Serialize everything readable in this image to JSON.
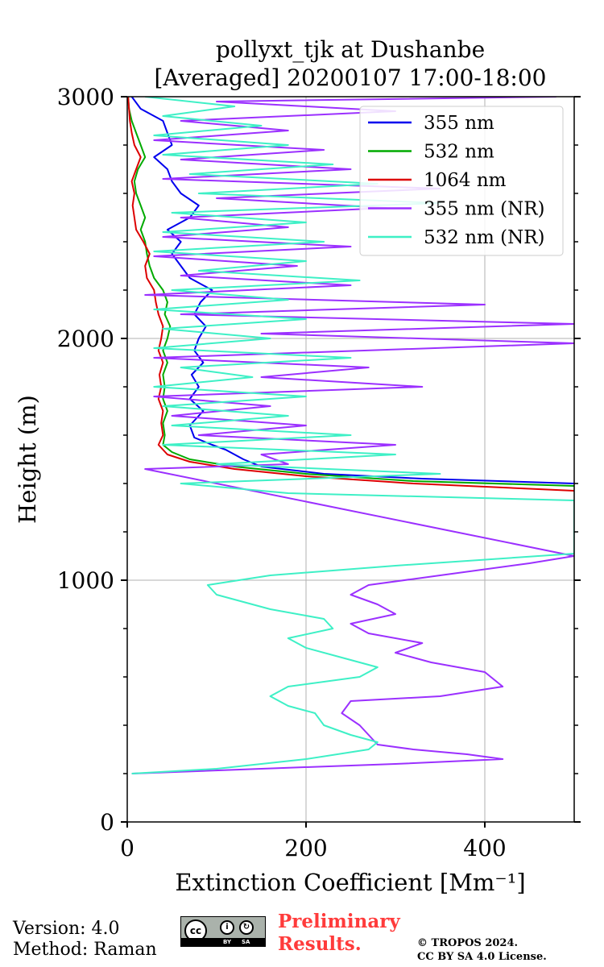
{
  "chart_data": {
    "type": "line",
    "title_line1": "pollyxt_tjk at Dushanbe",
    "title_line2": "[Averaged] 20200107 17:00-18:00",
    "xlabel": "Extinction Coefficient [Mm⁻¹]",
    "ylabel": "Height (m)",
    "xlim": [
      0,
      500
    ],
    "ylim": [
      0,
      3000
    ],
    "xticks": [
      0,
      200,
      400
    ],
    "yticks": [
      0,
      1000,
      2000,
      3000
    ],
    "grid": true,
    "legend_position": "top-right",
    "series": [
      {
        "name": "355 nm",
        "color": "#0000ee",
        "points": [
          [
            500,
            1400
          ],
          [
            330,
            1420
          ],
          [
            220,
            1440
          ],
          [
            150,
            1470
          ],
          [
            130,
            1500
          ],
          [
            110,
            1540
          ],
          [
            95,
            1560
          ],
          [
            75,
            1590
          ],
          [
            70,
            1640
          ],
          [
            85,
            1700
          ],
          [
            70,
            1750
          ],
          [
            80,
            1800
          ],
          [
            72,
            1850
          ],
          [
            85,
            1900
          ],
          [
            75,
            1950
          ],
          [
            80,
            2000
          ],
          [
            88,
            2050
          ],
          [
            75,
            2100
          ],
          [
            82,
            2150
          ],
          [
            95,
            2200
          ],
          [
            70,
            2250
          ],
          [
            60,
            2300
          ],
          [
            50,
            2350
          ],
          [
            60,
            2400
          ],
          [
            45,
            2450
          ],
          [
            70,
            2500
          ],
          [
            80,
            2550
          ],
          [
            60,
            2600
          ],
          [
            50,
            2650
          ],
          [
            45,
            2700
          ],
          [
            30,
            2750
          ],
          [
            50,
            2800
          ],
          [
            45,
            2850
          ],
          [
            40,
            2900
          ],
          [
            15,
            2950
          ],
          [
            5,
            3000
          ]
        ]
      },
      {
        "name": "532 nm",
        "color": "#00aa00",
        "points": [
          [
            500,
            1390
          ],
          [
            320,
            1410
          ],
          [
            200,
            1440
          ],
          [
            120,
            1470
          ],
          [
            70,
            1500
          ],
          [
            50,
            1530
          ],
          [
            40,
            1560
          ],
          [
            42,
            1600
          ],
          [
            40,
            1650
          ],
          [
            45,
            1700
          ],
          [
            40,
            1750
          ],
          [
            42,
            1800
          ],
          [
            40,
            1850
          ],
          [
            45,
            1900
          ],
          [
            40,
            1950
          ],
          [
            45,
            2000
          ],
          [
            48,
            2050
          ],
          [
            42,
            2100
          ],
          [
            45,
            2150
          ],
          [
            40,
            2200
          ],
          [
            30,
            2250
          ],
          [
            25,
            2300
          ],
          [
            22,
            2350
          ],
          [
            20,
            2400
          ],
          [
            15,
            2450
          ],
          [
            20,
            2500
          ],
          [
            15,
            2550
          ],
          [
            10,
            2600
          ],
          [
            8,
            2650
          ],
          [
            12,
            2700
          ],
          [
            20,
            2750
          ],
          [
            15,
            2800
          ],
          [
            10,
            2850
          ],
          [
            5,
            2900
          ],
          [
            2,
            2950
          ],
          [
            1,
            3000
          ]
        ]
      },
      {
        "name": "1064 nm",
        "color": "#dd0000",
        "points": [
          [
            500,
            1370
          ],
          [
            320,
            1400
          ],
          [
            200,
            1430
          ],
          [
            120,
            1460
          ],
          [
            70,
            1490
          ],
          [
            45,
            1520
          ],
          [
            35,
            1560
          ],
          [
            40,
            1600
          ],
          [
            38,
            1650
          ],
          [
            40,
            1700
          ],
          [
            35,
            1750
          ],
          [
            38,
            1800
          ],
          [
            36,
            1850
          ],
          [
            40,
            1900
          ],
          [
            35,
            1950
          ],
          [
            38,
            2000
          ],
          [
            40,
            2050
          ],
          [
            35,
            2100
          ],
          [
            32,
            2150
          ],
          [
            30,
            2200
          ],
          [
            22,
            2250
          ],
          [
            20,
            2300
          ],
          [
            25,
            2350
          ],
          [
            18,
            2400
          ],
          [
            10,
            2450
          ],
          [
            8,
            2500
          ],
          [
            6,
            2550
          ],
          [
            8,
            2600
          ],
          [
            5,
            2650
          ],
          [
            10,
            2700
          ],
          [
            15,
            2750
          ],
          [
            8,
            2800
          ],
          [
            5,
            2850
          ],
          [
            3,
            2900
          ],
          [
            2,
            2950
          ],
          [
            1,
            3000
          ]
        ]
      },
      {
        "name": "355 nm (NR)",
        "color": "#9b30ff",
        "points": [
          [
            5,
            200
          ],
          [
            150,
            220
          ],
          [
            300,
            240
          ],
          [
            420,
            260
          ],
          [
            380,
            280
          ],
          [
            320,
            300
          ],
          [
            280,
            320
          ],
          [
            270,
            360
          ],
          [
            260,
            400
          ],
          [
            240,
            450
          ],
          [
            250,
            500
          ],
          [
            350,
            520
          ],
          [
            420,
            560
          ],
          [
            400,
            620
          ],
          [
            340,
            660
          ],
          [
            300,
            700
          ],
          [
            330,
            740
          ],
          [
            270,
            780
          ],
          [
            250,
            820
          ],
          [
            300,
            860
          ],
          [
            280,
            900
          ],
          [
            250,
            940
          ],
          [
            270,
            980
          ],
          [
            350,
            1020
          ],
          [
            450,
            1070
          ],
          [
            500,
            1100
          ],
          [
            20,
            1460
          ],
          [
            180,
            1480
          ],
          [
            150,
            1520
          ],
          [
            300,
            1560
          ],
          [
            80,
            1600
          ],
          [
            200,
            1640
          ],
          [
            50,
            1680
          ],
          [
            160,
            1720
          ],
          [
            30,
            1760
          ],
          [
            330,
            1800
          ],
          [
            150,
            1840
          ],
          [
            270,
            1880
          ],
          [
            30,
            1920
          ],
          [
            500,
            1980
          ],
          [
            150,
            2020
          ],
          [
            500,
            2060
          ],
          [
            60,
            2100
          ],
          [
            400,
            2140
          ],
          [
            20,
            2180
          ],
          [
            250,
            2220
          ],
          [
            60,
            2260
          ],
          [
            190,
            2300
          ],
          [
            30,
            2340
          ],
          [
            250,
            2380
          ],
          [
            40,
            2420
          ],
          [
            180,
            2460
          ],
          [
            60,
            2500
          ],
          [
            290,
            2540
          ],
          [
            100,
            2580
          ],
          [
            350,
            2620
          ],
          [
            40,
            2660
          ],
          [
            250,
            2700
          ],
          [
            60,
            2740
          ],
          [
            220,
            2780
          ],
          [
            30,
            2820
          ],
          [
            180,
            2860
          ],
          [
            60,
            2900
          ],
          [
            300,
            2940
          ],
          [
            100,
            2980
          ],
          [
            480,
            3000
          ]
        ]
      },
      {
        "name": "532 nm (NR)",
        "color": "#3ef0c6",
        "points": [
          [
            5,
            200
          ],
          [
            100,
            220
          ],
          [
            200,
            260
          ],
          [
            270,
            300
          ],
          [
            280,
            330
          ],
          [
            250,
            360
          ],
          [
            220,
            400
          ],
          [
            210,
            450
          ],
          [
            180,
            480
          ],
          [
            160,
            520
          ],
          [
            180,
            560
          ],
          [
            260,
            600
          ],
          [
            280,
            640
          ],
          [
            240,
            680
          ],
          [
            200,
            720
          ],
          [
            180,
            760
          ],
          [
            230,
            800
          ],
          [
            220,
            840
          ],
          [
            160,
            880
          ],
          [
            100,
            940
          ],
          [
            90,
            980
          ],
          [
            160,
            1020
          ],
          [
            300,
            1060
          ],
          [
            500,
            1110
          ],
          [
            500,
            1330
          ],
          [
            180,
            1360
          ],
          [
            60,
            1400
          ],
          [
            350,
            1440
          ],
          [
            100,
            1480
          ],
          [
            300,
            1520
          ],
          [
            40,
            1560
          ],
          [
            250,
            1600
          ],
          [
            50,
            1640
          ],
          [
            180,
            1680
          ],
          [
            40,
            1720
          ],
          [
            200,
            1760
          ],
          [
            30,
            1800
          ],
          [
            140,
            1840
          ],
          [
            60,
            1880
          ],
          [
            250,
            1920
          ],
          [
            30,
            1960
          ],
          [
            160,
            2000
          ],
          [
            40,
            2040
          ],
          [
            200,
            2080
          ],
          [
            30,
            2120
          ],
          [
            180,
            2160
          ],
          [
            50,
            2200
          ],
          [
            260,
            2240
          ],
          [
            80,
            2280
          ],
          [
            200,
            2320
          ],
          [
            30,
            2360
          ],
          [
            220,
            2400
          ],
          [
            40,
            2440
          ],
          [
            200,
            2480
          ],
          [
            50,
            2520
          ],
          [
            350,
            2560
          ],
          [
            80,
            2600
          ],
          [
            280,
            2640
          ],
          [
            70,
            2680
          ],
          [
            230,
            2720
          ],
          [
            40,
            2760
          ],
          [
            180,
            2800
          ],
          [
            30,
            2840
          ],
          [
            150,
            2880
          ],
          [
            40,
            2920
          ],
          [
            120,
            2960
          ],
          [
            20,
            3000
          ]
        ]
      }
    ]
  },
  "footer": {
    "version": "Version: 4.0",
    "method": "Method: Raman",
    "preliminary_line1": "Preliminary",
    "preliminary_line2": "Results.",
    "copyright_line1": "© TROPOS 2024.",
    "copyright_line2": "CC BY SA 4.0 License.",
    "cc_badge": {
      "cc": "cc",
      "by": "BY",
      "sa": "SA"
    }
  }
}
